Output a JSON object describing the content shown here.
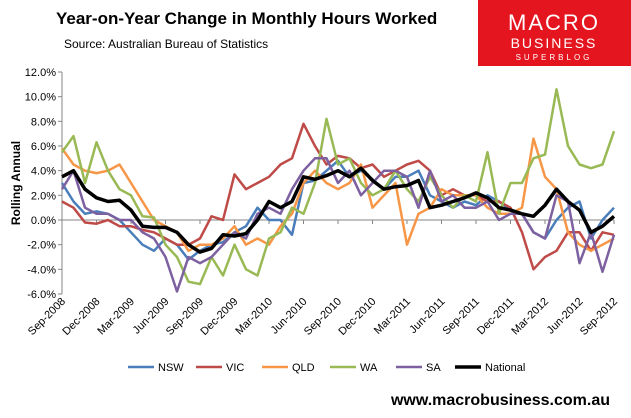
{
  "chart_data": {
    "type": "line",
    "title": "Year-on-Year  Change in Monthly Hours Worked",
    "subtitle": "Source: Australian Bureau of Statistics",
    "logo": {
      "line1": "MACRO",
      "line2": "BUSINESS",
      "line3": "SUPERBLOG"
    },
    "footer": "www.macrobusiness.com.au",
    "y_label": "Rolling Annual",
    "categories": [
      "Sep-2008",
      null,
      null,
      "Dec-2008",
      null,
      null,
      "Mar-2009",
      null,
      null,
      "Jun-2009",
      null,
      null,
      "Sep-2009",
      null,
      null,
      "Dec-2009",
      null,
      null,
      "Mar-2010",
      null,
      null,
      "Jun-2010",
      null,
      null,
      "Sep-2010",
      null,
      null,
      "Dec-2010",
      null,
      null,
      "Mar-2011",
      null,
      null,
      "Jun-2011",
      null,
      null,
      "Sep-2011",
      null,
      null,
      "Dec-2011",
      null,
      null,
      "Mar-2012",
      null,
      null,
      "Jun-2012",
      null,
      null,
      "Sep-2012"
    ],
    "ylim": [
      -6,
      12
    ],
    "yticks": [
      {
        "value": -6,
        "label": "-6.0%"
      },
      {
        "value": -4,
        "label": "-4.0%"
      },
      {
        "value": -2,
        "label": "-2.0%"
      },
      {
        "value": 0,
        "label": "0.0%"
      },
      {
        "value": 2,
        "label": "2.0%"
      },
      {
        "value": 4,
        "label": "4.0%"
      },
      {
        "value": 6,
        "label": "6.0%"
      },
      {
        "value": 8,
        "label": "8.0%"
      },
      {
        "value": 10,
        "label": "10.0%"
      },
      {
        "value": 12,
        "label": "12.0%"
      }
    ],
    "series": [
      {
        "name": "NSW",
        "color": "#4a7ebb",
        "width": 2.5,
        "values": [
          3.0,
          1.5,
          0.5,
          0.7,
          0.5,
          0.0,
          -1.0,
          -2.0,
          -2.5,
          -1.5,
          -2.0,
          -3.2,
          -2.5,
          -2.0,
          -1.8,
          -1.0,
          -0.5,
          1.0,
          0.0,
          0.0,
          -1.2,
          3.0,
          3.2,
          4.0,
          4.8,
          3.5,
          4.0,
          3.3,
          2.5,
          3.5,
          3.5,
          4.0,
          2.0,
          1.5,
          1.0,
          1.5,
          1.2,
          2.0,
          1.5,
          0.8,
          0.5,
          -1.0,
          -1.5,
          0.0,
          1.0,
          1.5,
          -1.5,
          0.0,
          1.0
        ]
      },
      {
        "name": "VIC",
        "color": "#be4b48",
        "width": 2.5,
        "values": [
          1.5,
          1.0,
          -0.2,
          -0.3,
          0.0,
          -0.5,
          -0.5,
          -0.8,
          -1.0,
          -1.5,
          -2.0,
          -2.0,
          -1.5,
          0.3,
          0.0,
          3.7,
          2.5,
          3.0,
          3.5,
          4.5,
          5.0,
          7.8,
          6.0,
          4.5,
          5.2,
          5.0,
          4.2,
          4.5,
          3.5,
          4.0,
          4.5,
          4.8,
          4.0,
          2.0,
          2.5,
          2.0,
          2.0,
          1.5,
          1.5,
          1.0,
          -1.0,
          -4.0,
          -3.0,
          -2.5,
          -1.0,
          -1.0,
          -2.5,
          -1.0,
          -1.2
        ]
      },
      {
        "name": "QLD",
        "color": "#f79646",
        "width": 2.5,
        "values": [
          5.8,
          4.5,
          4.0,
          3.8,
          4.0,
          4.5,
          3.0,
          1.5,
          0.0,
          -0.5,
          -1.0,
          -2.5,
          -2.0,
          -2.0,
          -1.5,
          -0.5,
          -2.0,
          -1.5,
          -2.0,
          -0.5,
          0.5,
          3.0,
          4.0,
          3.0,
          2.5,
          3.0,
          4.5,
          1.0,
          2.0,
          3.0,
          -2.0,
          0.5,
          1.0,
          2.5,
          2.0,
          2.0,
          2.0,
          1.0,
          0.5,
          0.5,
          1.0,
          6.6,
          3.5,
          2.5,
          -1.0,
          -2.0,
          -2.5,
          -2.0,
          -1.5
        ]
      },
      {
        "name": "WA",
        "color": "#98b954",
        "width": 2.5,
        "values": [
          5.5,
          6.8,
          3.0,
          6.3,
          4.0,
          2.5,
          2.0,
          0.3,
          0.2,
          -2.0,
          -3.0,
          -5.0,
          -5.2,
          -3.0,
          -4.5,
          -2.0,
          -4.0,
          -4.5,
          -1.5,
          -1.0,
          1.0,
          0.5,
          3.0,
          8.2,
          4.5,
          5.0,
          3.0,
          2.0,
          2.5,
          4.0,
          2.5,
          1.5,
          3.5,
          2.0,
          1.0,
          2.0,
          1.5,
          5.5,
          0.5,
          3.0,
          3.0,
          5.0,
          5.3,
          10.6,
          6.0,
          4.5,
          4.2,
          4.5,
          7.2
        ]
      },
      {
        "name": "SA",
        "color": "#7d60a0",
        "width": 2.5,
        "values": [
          2.5,
          4.0,
          1.0,
          0.5,
          0.5,
          0.0,
          0.0,
          -1.0,
          -1.5,
          -3.0,
          -5.8,
          -3.0,
          -3.5,
          -3.0,
          -2.0,
          -1.0,
          -1.5,
          0.5,
          1.0,
          0.5,
          2.5,
          4.0,
          5.0,
          5.0,
          3.0,
          4.0,
          2.0,
          3.0,
          4.0,
          4.0,
          3.5,
          1.0,
          4.0,
          1.5,
          2.0,
          1.0,
          1.0,
          1.5,
          0.0,
          0.5,
          0.5,
          -1.0,
          -1.5,
          2.0,
          1.5,
          -3.5,
          -1.0,
          -4.2,
          -1.2
        ]
      },
      {
        "name": "National",
        "color": "#000000",
        "width": 3.5,
        "values": [
          3.5,
          4.0,
          2.5,
          1.8,
          1.5,
          1.6,
          0.8,
          -0.5,
          -0.6,
          -0.6,
          -1.0,
          -2.0,
          -2.6,
          -2.3,
          -1.2,
          -1.3,
          -1.1,
          0.0,
          1.5,
          1.0,
          1.5,
          3.5,
          3.3,
          3.6,
          4.0,
          3.5,
          4.2,
          3.2,
          2.5,
          2.7,
          2.8,
          3.2,
          1.0,
          1.2,
          1.5,
          1.8,
          2.2,
          1.8,
          1.0,
          0.8,
          0.5,
          0.3,
          1.2,
          2.5,
          1.5,
          0.8,
          -1.0,
          -0.5,
          0.3
        ]
      }
    ]
  }
}
